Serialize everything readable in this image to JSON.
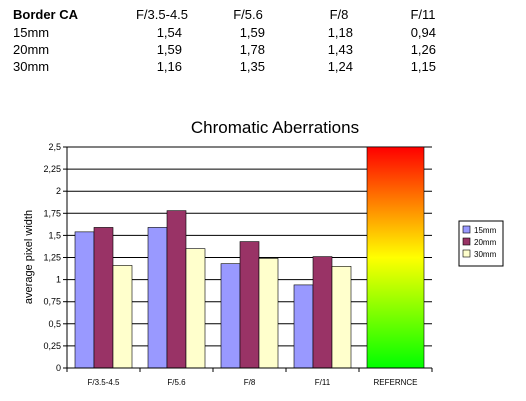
{
  "table": {
    "header": [
      "Border CA",
      "F/3.5-4.5",
      "F/5.6",
      "F/8",
      "F/11"
    ],
    "rows": [
      [
        "15mm",
        "1,54",
        "1,59",
        "1,18",
        "0,94"
      ],
      [
        "20mm",
        "1,59",
        "1,78",
        "1,43",
        "1,26"
      ],
      [
        "30mm",
        "1,16",
        "1,35",
        "1,24",
        "1,15"
      ]
    ]
  },
  "chart_data": {
    "type": "bar",
    "title": "Chromatic Aberrations",
    "ylabel": "average pixel width",
    "xlabel": "",
    "categories": [
      "F/3.5-4.5",
      "F/5.6",
      "F/8",
      "F/11",
      "REFERNCE"
    ],
    "series": [
      {
        "name": "15mm",
        "color": "#9999ff",
        "values": [
          1.54,
          1.59,
          1.18,
          0.94,
          null
        ]
      },
      {
        "name": "20mm",
        "color": "#993366",
        "values": [
          1.59,
          1.78,
          1.43,
          1.26,
          null
        ]
      },
      {
        "name": "30mm",
        "color": "#ffffcc",
        "values": [
          1.16,
          1.35,
          1.24,
          1.15,
          null
        ]
      }
    ],
    "reference": {
      "category": "REFERNCE",
      "value": 2.5,
      "gradient": [
        "#ff0000",
        "#ffff00",
        "#00ff00"
      ]
    },
    "ylim": [
      0,
      2.5
    ],
    "yticks": [
      "0",
      "0,25",
      "0,5",
      "0,75",
      "1",
      "1,25",
      "1,5",
      "1,75",
      "2",
      "2,25",
      "2,5"
    ],
    "grid": true,
    "legend": "right"
  }
}
